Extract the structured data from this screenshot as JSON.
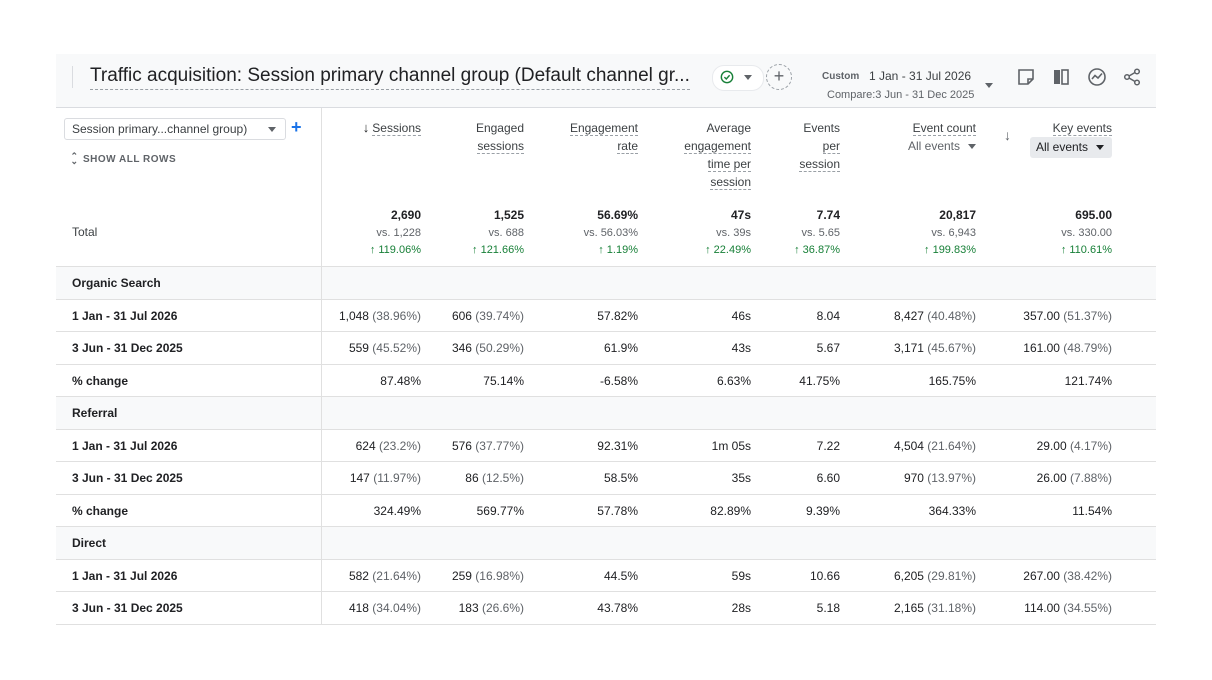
{
  "header": {
    "title": "Traffic acquisition: Session primary channel group (Default channel gr...",
    "date_custom": "Custom",
    "date_range": "1 Jan - 31 Jul 2026",
    "date_compare": "Compare:3 Jun - 31 Dec 2025",
    "add_symbol": "+"
  },
  "dimension": {
    "select_label": "Session primary...channel group)",
    "add_symbol": "+",
    "show_all": "SHOW ALL ROWS"
  },
  "columns": {
    "sessions": "Sessions",
    "engaged": [
      "Engaged",
      "sessions"
    ],
    "engagement_rate": [
      "Engagement",
      "rate"
    ],
    "avg_time": [
      "Average",
      "engagement",
      "time per",
      "session"
    ],
    "events_per": [
      "Events",
      "per",
      "session"
    ],
    "event_count": "Event count",
    "event_count_select": "All events",
    "key_events": "Key events",
    "key_events_select": "All events"
  },
  "total": {
    "label": "Total",
    "main": [
      "2,690",
      "1,525",
      "56.69%",
      "47s",
      "7.74",
      "20,817",
      "695.00"
    ],
    "vs": [
      "vs. 1,228",
      "vs. 688",
      "vs. 56.03%",
      "vs. 39s",
      "vs. 5.65",
      "vs. 6,943",
      "vs. 330.00"
    ],
    "change": [
      "↑ 119.06%",
      "↑ 121.66%",
      "↑ 1.19%",
      "↑ 22.49%",
      "↑ 36.87%",
      "↑ 199.83%",
      "↑ 110.61%"
    ]
  },
  "groups": [
    {
      "name": "Organic Search",
      "rows": [
        {
          "label": "1 Jan - 31 Jul 2026",
          "cells": [
            [
              "1,048",
              " (38.96%)"
            ],
            [
              "606",
              " (39.74%)"
            ],
            [
              "57.82%",
              ""
            ],
            [
              "46s",
              ""
            ],
            [
              "8.04",
              ""
            ],
            [
              "8,427",
              " (40.48%)"
            ],
            [
              "357.00",
              " (51.37%)"
            ]
          ]
        },
        {
          "label": "3 Jun - 31 Dec 2025",
          "cells": [
            [
              "559",
              " (45.52%)"
            ],
            [
              "346",
              " (50.29%)"
            ],
            [
              "61.9%",
              ""
            ],
            [
              "43s",
              ""
            ],
            [
              "5.67",
              ""
            ],
            [
              "3,171",
              " (45.67%)"
            ],
            [
              "161.00",
              " (48.79%)"
            ]
          ]
        },
        {
          "label": "% change",
          "cells": [
            [
              "87.48%",
              ""
            ],
            [
              "75.14%",
              ""
            ],
            [
              "-6.58%",
              ""
            ],
            [
              "6.63%",
              ""
            ],
            [
              "41.75%",
              ""
            ],
            [
              "165.75%",
              ""
            ],
            [
              "121.74%",
              ""
            ]
          ]
        }
      ]
    },
    {
      "name": "Referral",
      "rows": [
        {
          "label": "1 Jan - 31 Jul 2026",
          "cells": [
            [
              "624",
              " (23.2%)"
            ],
            [
              "576",
              " (37.77%)"
            ],
            [
              "92.31%",
              ""
            ],
            [
              "1m 05s",
              ""
            ],
            [
              "7.22",
              ""
            ],
            [
              "4,504",
              " (21.64%)"
            ],
            [
              "29.00",
              " (4.17%)"
            ]
          ]
        },
        {
          "label": "3 Jun - 31 Dec 2025",
          "cells": [
            [
              "147",
              " (11.97%)"
            ],
            [
              "86",
              " (12.5%)"
            ],
            [
              "58.5%",
              ""
            ],
            [
              "35s",
              ""
            ],
            [
              "6.60",
              ""
            ],
            [
              "970",
              " (13.97%)"
            ],
            [
              "26.00",
              " (7.88%)"
            ]
          ]
        },
        {
          "label": "% change",
          "cells": [
            [
              "324.49%",
              ""
            ],
            [
              "569.77%",
              ""
            ],
            [
              "57.78%",
              ""
            ],
            [
              "82.89%",
              ""
            ],
            [
              "9.39%",
              ""
            ],
            [
              "364.33%",
              ""
            ],
            [
              "11.54%",
              ""
            ]
          ]
        }
      ]
    },
    {
      "name": "Direct",
      "rows": [
        {
          "label": "1 Jan - 31 Jul 2026",
          "cells": [
            [
              "582",
              " (21.64%)"
            ],
            [
              "259",
              " (16.98%)"
            ],
            [
              "44.5%",
              ""
            ],
            [
              "59s",
              ""
            ],
            [
              "10.66",
              ""
            ],
            [
              "6,205",
              " (29.81%)"
            ],
            [
              "267.00",
              " (38.42%)"
            ]
          ]
        },
        {
          "label": "3 Jun - 31 Dec 2025",
          "cells": [
            [
              "418",
              " (34.04%)"
            ],
            [
              "183",
              " (26.6%)"
            ],
            [
              "43.78%",
              ""
            ],
            [
              "28s",
              ""
            ],
            [
              "5.18",
              ""
            ],
            [
              "2,165",
              " (31.18%)"
            ],
            [
              "114.00",
              " (34.55%)"
            ]
          ]
        }
      ]
    }
  ],
  "colors": {
    "accent": "#1a73e8",
    "positive": "#188038",
    "check": "#188038"
  },
  "icons": [
    "check-circle-icon",
    "caret-down-icon",
    "add-circle-icon",
    "note-icon",
    "compare-icon",
    "insights-icon",
    "share-icon",
    "sort-arrow-icon"
  ]
}
